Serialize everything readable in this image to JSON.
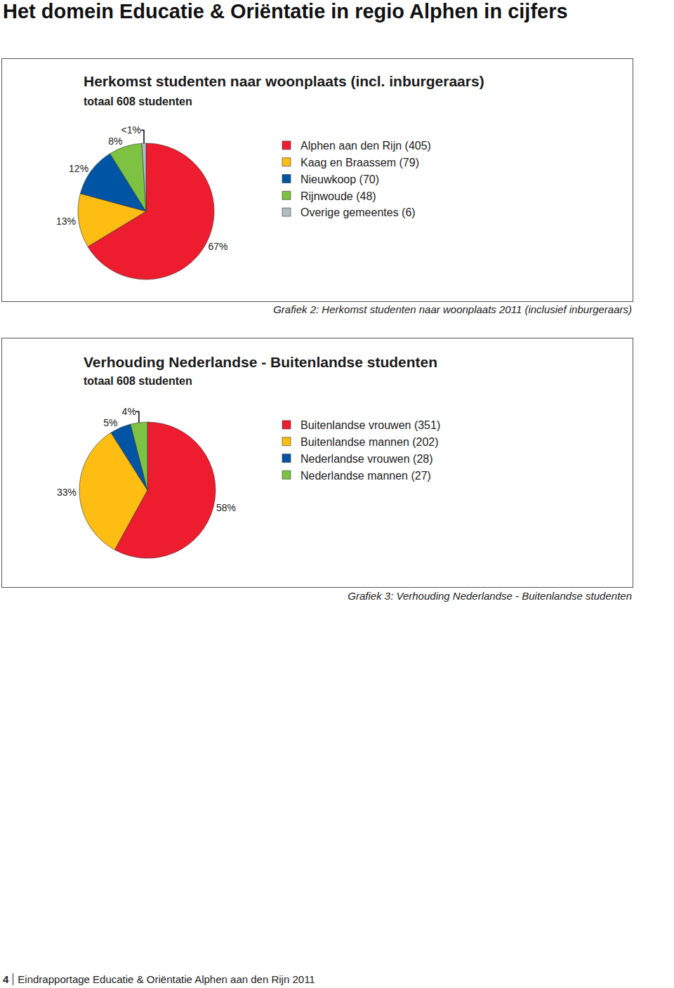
{
  "header": {
    "title": "Het domein Educatie & Oriëntatie in regio Alphen in cijfers"
  },
  "chart_data": [
    {
      "type": "pie",
      "title": "Herkomst studenten naar woonplaats (incl. inburgeraars)",
      "subtitle": "totaal 608 studenten",
      "categories": [
        "Alphen aan den Rijn (405)",
        "Kaag en Braassem (79)",
        "Nieuwkoop (70)",
        "Rijnwoude (48)",
        "Overige gemeentes (6)"
      ],
      "values": [
        67,
        13,
        12,
        8,
        0.99
      ],
      "value_labels": [
        "67%",
        "13%",
        "12%",
        "8%",
        "<1%"
      ],
      "colors": [
        "#ed1c2e",
        "#fdbd13",
        "#0054a4",
        "#7dc242",
        "#b3bcc2"
      ],
      "data_labels": true,
      "legend": "right",
      "caption": "Grafiek 2: Herkomst studenten naar woonplaats 2011 (inclusief inburgeraars)"
    },
    {
      "type": "pie",
      "title": "Verhouding Nederlandse - Buitenlandse studenten",
      "subtitle": "totaal 608 studenten",
      "categories": [
        "Buitenlandse vrouwen (351)",
        "Buitenlandse mannen (202)",
        "Nederlandse vrouwen (28)",
        "Nederlandse mannen (27)"
      ],
      "values": [
        58,
        33,
        5,
        4
      ],
      "value_labels": [
        "58%",
        "33%",
        "5%",
        "4%"
      ],
      "colors": [
        "#ed1c2e",
        "#fdbd13",
        "#0054a4",
        "#7dc242"
      ],
      "data_labels": true,
      "legend": "right",
      "caption": "Grafiek 3: Verhouding Nederlandse - Buitenlandse studenten"
    }
  ],
  "footer": {
    "page": "4",
    "text": "Eindrapportage Educatie & Oriëntatie Alphen aan den Rijn 2011"
  }
}
